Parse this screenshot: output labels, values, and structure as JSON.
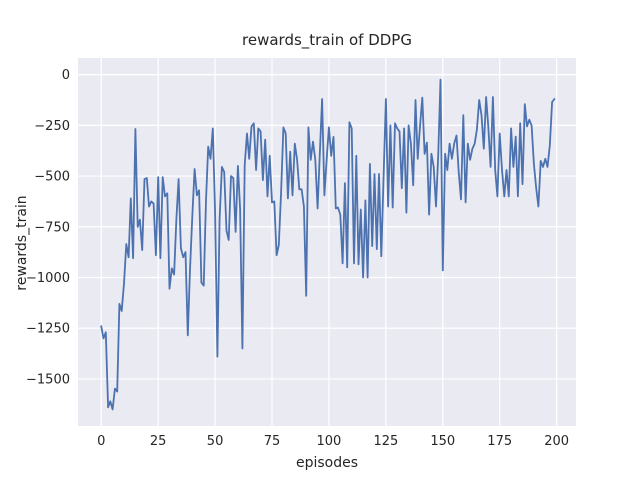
{
  "chart_data": {
    "type": "line",
    "title": "rewards_train of DDPG",
    "xlabel": "episodes",
    "ylabel": "rewards_train",
    "x_tick_labels": [
      0,
      25,
      50,
      75,
      100,
      125,
      150,
      175,
      200
    ],
    "y_tick_labels": [
      0,
      -250,
      -500,
      -750,
      -1000,
      -1250,
      -1500
    ],
    "xlim": [
      -10.2,
      208.5
    ],
    "ylim": [
      -1732,
      82
    ],
    "grid": "on",
    "legend": "none",
    "style": "seaborn-darkgrid",
    "colors": {
      "line": "#4C72B0",
      "plot_background": "#EAEAF2",
      "gridline": "#FFFFFF",
      "text": "#262626",
      "figure_background": "#FFFFFF"
    },
    "x_start": 0,
    "x_step": 1,
    "series": [
      {
        "name": "rewards_train",
        "values": [
          -1240,
          -1300,
          -1270,
          -1640,
          -1610,
          -1650,
          -1548,
          -1562,
          -1130,
          -1165,
          -1030,
          -835,
          -900,
          -610,
          -905,
          -268,
          -750,
          -715,
          -865,
          -515,
          -510,
          -650,
          -625,
          -635,
          -890,
          -505,
          -905,
          -505,
          -600,
          -585,
          -1055,
          -955,
          -985,
          -710,
          -515,
          -855,
          -900,
          -875,
          -1285,
          -960,
          -700,
          -465,
          -595,
          -570,
          -1025,
          -1040,
          -620,
          -355,
          -415,
          -265,
          -680,
          -1390,
          -710,
          -455,
          -480,
          -770,
          -815,
          -500,
          -510,
          -775,
          -450,
          -660,
          -1350,
          -445,
          -290,
          -415,
          -255,
          -240,
          -470,
          -265,
          -280,
          -520,
          -320,
          -600,
          -400,
          -630,
          -625,
          -890,
          -840,
          -580,
          -260,
          -290,
          -610,
          -380,
          -595,
          -340,
          -420,
          -565,
          -565,
          -650,
          -1090,
          -260,
          -420,
          -330,
          -420,
          -660,
          -390,
          -120,
          -595,
          -415,
          -260,
          -400,
          -307,
          -660,
          -655,
          -690,
          -930,
          -535,
          -950,
          -235,
          -265,
          -930,
          -400,
          -935,
          -665,
          -1000,
          -620,
          -1000,
          -440,
          -845,
          -490,
          -860,
          -490,
          -895,
          -500,
          -120,
          -650,
          -250,
          -655,
          -240,
          -265,
          -280,
          -560,
          -265,
          -680,
          -250,
          -340,
          -545,
          -125,
          -415,
          -255,
          -113,
          -390,
          -335,
          -690,
          -390,
          -455,
          -650,
          -400,
          -25,
          -965,
          -390,
          -470,
          -340,
          -415,
          -340,
          -300,
          -480,
          -615,
          -200,
          -630,
          -340,
          -420,
          -365,
          -340,
          -270,
          -125,
          -200,
          -365,
          -110,
          -257,
          -455,
          -110,
          -470,
          -600,
          -290,
          -470,
          -600,
          -470,
          -600,
          -265,
          -455,
          -306,
          -600,
          -240,
          -540,
          -145,
          -255,
          -222,
          -250,
          -440,
          -560,
          -650,
          -425,
          -455,
          -415,
          -455,
          -350,
          -135,
          -120
        ]
      }
    ]
  }
}
